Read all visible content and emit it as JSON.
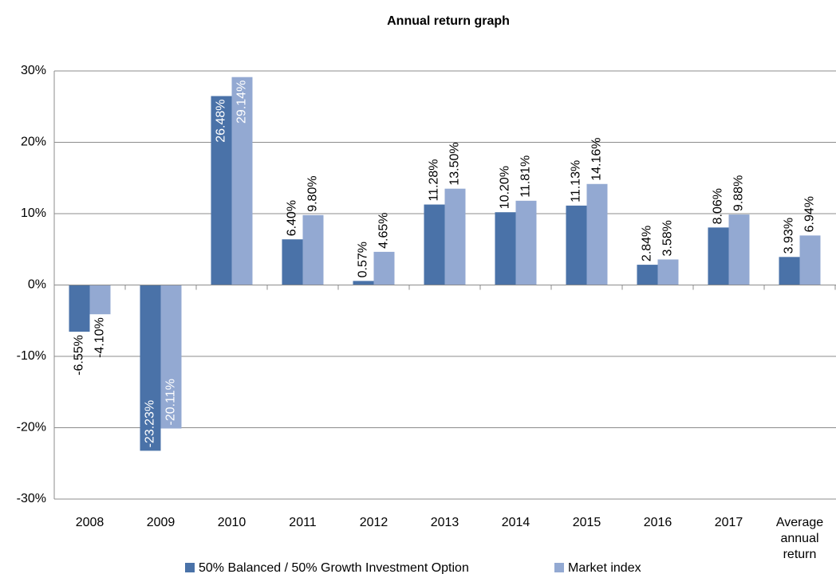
{
  "chart_data": {
    "type": "bar",
    "title": "Annual return graph",
    "categories": [
      "2008",
      "2009",
      "2010",
      "2011",
      "2012",
      "2013",
      "2014",
      "2015",
      "2016",
      "2017",
      "Average annual return"
    ],
    "series": [
      {
        "name": "50% Balanced / 50% Growth Investment Option",
        "color": "#4a72a8",
        "values": [
          -6.55,
          -23.23,
          26.48,
          6.4,
          0.57,
          11.28,
          10.2,
          11.13,
          2.84,
          8.06,
          3.93
        ],
        "value_labels": [
          "-6.55%",
          "-23.23%",
          "26.48%",
          "6.40%",
          "0.57%",
          "11.28%",
          "10.20%",
          "11.13%",
          "2.84%",
          "8.06%",
          "3.93%"
        ]
      },
      {
        "name": "Market index",
        "color": "#93a9d2",
        "values": [
          -4.1,
          -20.11,
          29.14,
          9.8,
          4.65,
          13.5,
          11.81,
          14.16,
          3.58,
          9.88,
          6.94
        ],
        "value_labels": [
          "-4.10%",
          "-20.11%",
          "29.14%",
          "9.80%",
          "4.65%",
          "13.50%",
          "11.81%",
          "14.16%",
          "3.58%",
          "9.88%",
          "6.94%"
        ]
      }
    ],
    "ylim": [
      -30,
      30
    ],
    "yticks": [
      {
        "value": -30,
        "label": "-30%"
      },
      {
        "value": -20,
        "label": "-20%"
      },
      {
        "value": -10,
        "label": "-10%"
      },
      {
        "value": 0,
        "label": "0%"
      },
      {
        "value": 10,
        "label": "10%"
      },
      {
        "value": 20,
        "label": "20%"
      },
      {
        "value": 30,
        "label": "30%"
      }
    ],
    "grid": true,
    "legend": "bottom"
  }
}
